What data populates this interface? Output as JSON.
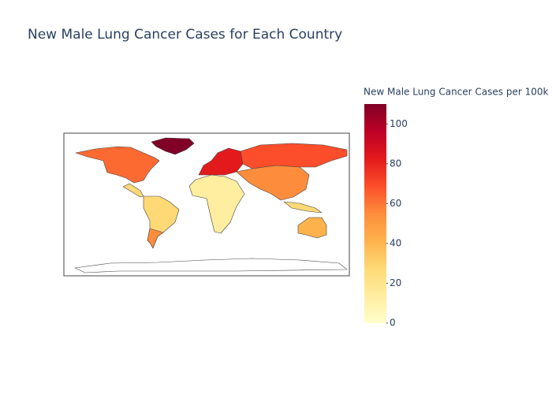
{
  "chart_data": {
    "type": "choropleth",
    "title": "New Male Lung Cancer Cases for Each Country",
    "colorbar_title": "New Male Lung Cancer Cases per 100k",
    "colorbar_range": [
      0,
      110
    ],
    "colorbar_ticks": [
      0,
      20,
      40,
      60,
      80,
      100
    ],
    "colorscale": [
      "#ffffcc",
      "#ffeda0",
      "#fed976",
      "#feb24c",
      "#fd8d3c",
      "#fc4e2a",
      "#e31a1c",
      "#bd0026",
      "#800026"
    ]
  }
}
